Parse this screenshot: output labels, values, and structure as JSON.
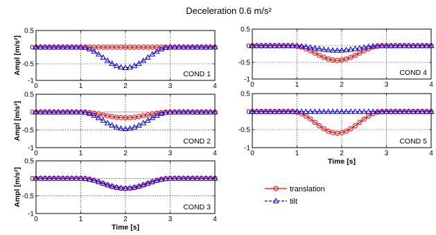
{
  "title": "Deceleration 0.6 m/s²",
  "legend": [
    {
      "label": "translation",
      "color": "#ff0000",
      "marker": "circle",
      "line": "solid"
    },
    {
      "label": "tilt",
      "color": "#0000ff",
      "marker": "triangle",
      "line": "dashed"
    }
  ],
  "chart_data": [
    {
      "type": "line",
      "label": "COND 1",
      "ylabel": "Ampl [m/s²]",
      "xlabel": "",
      "xlim": [
        0,
        4
      ],
      "ylim": [
        -1,
        0.5
      ],
      "xticks": [
        0,
        1,
        2,
        3,
        4
      ],
      "yticks": [
        -1,
        -0.5,
        0,
        0.5
      ],
      "ytick_labels": [
        "-1",
        "-0.5",
        "0",
        "0.5"
      ],
      "grid": true,
      "series": [
        {
          "name": "translation",
          "peak": 0.0,
          "center": 2.0
        },
        {
          "name": "tilt",
          "peak": -0.62,
          "center": 2.0
        }
      ]
    },
    {
      "type": "line",
      "label": "COND 2",
      "ylabel": "Ampl [m/s²]",
      "xlabel": "",
      "xlim": [
        0,
        4
      ],
      "ylim": [
        -1,
        0.5
      ],
      "xticks": [
        0,
        1,
        2,
        3,
        4
      ],
      "yticks": [
        -1,
        -0.5,
        0,
        0.5
      ],
      "ytick_labels": [
        "-1",
        "-0.5",
        "0",
        "0.5"
      ],
      "grid": true,
      "series": [
        {
          "name": "translation",
          "peak": -0.16,
          "center": 2.0
        },
        {
          "name": "tilt",
          "peak": -0.47,
          "center": 2.0
        }
      ]
    },
    {
      "type": "line",
      "label": "COND 3",
      "ylabel": "Ampl [m/s²]",
      "xlabel": "Time [s]",
      "xlim": [
        0,
        4
      ],
      "ylim": [
        -1,
        0.5
      ],
      "xticks": [
        0,
        1,
        2,
        3,
        4
      ],
      "yticks": [
        -1,
        -0.5,
        0,
        0.5
      ],
      "ytick_labels": [
        "-1",
        "-0.5",
        "0",
        "0.5"
      ],
      "grid": true,
      "series": [
        {
          "name": "translation",
          "peak": -0.29,
          "center": 2.0
        },
        {
          "name": "tilt",
          "peak": -0.28,
          "center": 2.0
        }
      ]
    },
    {
      "type": "line",
      "label": "COND 4",
      "ylabel": "",
      "xlabel": "",
      "xlim": [
        0,
        4
      ],
      "ylim": [
        -1,
        0.5
      ],
      "xticks": [
        0,
        1,
        2,
        3,
        4
      ],
      "yticks": [
        -1,
        -0.5,
        0,
        0.5
      ],
      "ytick_labels": [
        "-1",
        "-0.5",
        "0",
        "0.5"
      ],
      "grid": true,
      "series": [
        {
          "name": "translation",
          "peak": -0.44,
          "center": 1.9
        },
        {
          "name": "tilt",
          "peak": -0.14,
          "center": 1.9
        }
      ]
    },
    {
      "type": "line",
      "label": "COND 5",
      "ylabel": "",
      "xlabel": "Time [s]",
      "xlim": [
        0,
        4
      ],
      "ylim": [
        -1,
        0.5
      ],
      "xticks": [
        0,
        1,
        2,
        3,
        4
      ],
      "yticks": [
        -1,
        -0.5,
        0,
        0.5
      ],
      "ytick_labels": [
        "-1",
        "-0.5",
        "0",
        "0.5"
      ],
      "grid": true,
      "series": [
        {
          "name": "translation",
          "peak": -0.6,
          "center": 1.9
        },
        {
          "name": "tilt",
          "peak": 0.0,
          "center": 1.9
        }
      ]
    }
  ]
}
